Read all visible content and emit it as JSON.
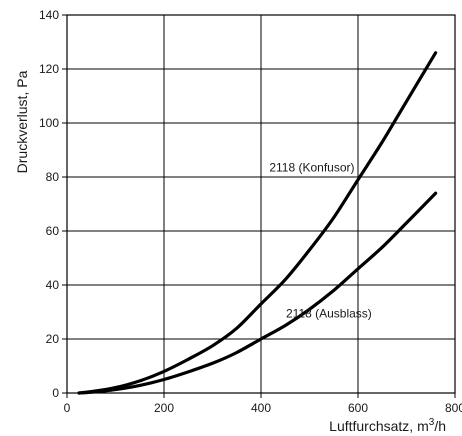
{
  "chart_data": {
    "type": "line",
    "xlabel_main": "Luftfurchsatz, m",
    "xlabel_sup": "3",
    "xlabel_tail": "/h",
    "ylabel": "Druckverlust, Pa",
    "xlim": [
      0,
      800
    ],
    "ylim": [
      0,
      140
    ],
    "x_ticks": [
      0,
      200,
      400,
      600,
      800
    ],
    "y_ticks": [
      0,
      20,
      40,
      60,
      80,
      100,
      120,
      140
    ],
    "x_tick_labels": [
      "0",
      "200",
      "400",
      "600",
      "800"
    ],
    "y_tick_labels": [
      "0",
      "20",
      "40",
      "60",
      "80",
      "100",
      "120",
      "140"
    ],
    "grid": true,
    "series": [
      {
        "label": "2118 (Konfusor)",
        "x": [
          25,
          50,
          100,
          150,
          200,
          250,
          300,
          350,
          400,
          450,
          500,
          550,
          600,
          650,
          700,
          760
        ],
        "y": [
          0,
          0.5,
          2,
          4.5,
          8,
          12.5,
          17.5,
          24,
          33,
          42,
          53,
          65,
          79,
          93,
          108,
          126
        ]
      },
      {
        "label": "2118 (Ausblass)",
        "x": [
          25,
          50,
          100,
          150,
          200,
          250,
          300,
          350,
          400,
          450,
          500,
          550,
          600,
          650,
          700,
          760
        ],
        "y": [
          0,
          0.3,
          1.3,
          2.8,
          5,
          7.8,
          11,
          15,
          20,
          25,
          31,
          38,
          46,
          54,
          63,
          74
        ]
      }
    ],
    "annotations": [
      {
        "text": "2118 (Konfusor)",
        "x": 505,
        "y": 82
      },
      {
        "text": "2118 (Ausblass)",
        "x": 540,
        "y": 28
      }
    ]
  }
}
